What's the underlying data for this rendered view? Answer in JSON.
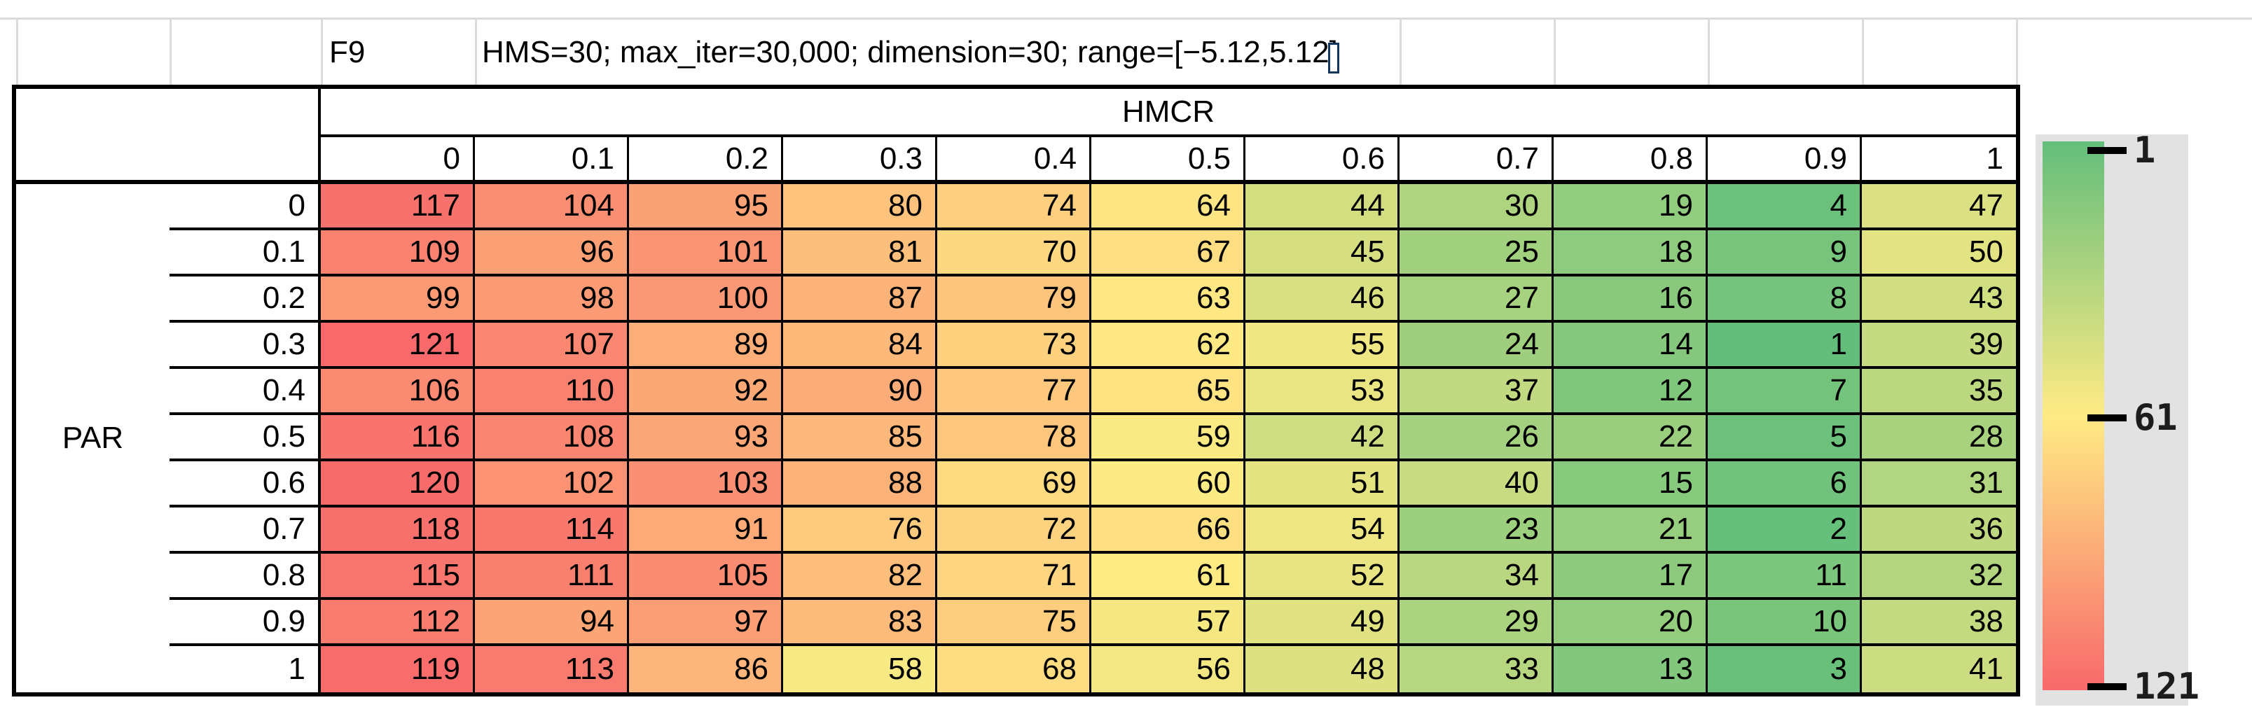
{
  "title": {
    "cell_label": "F9",
    "settings": "HMS=30; max_iter=30,000; dimension=30; range=[−5.12,5.12]"
  },
  "chart_data": {
    "type": "heatmap",
    "title": "F9",
    "subtitle": "HMS=30; max_iter=30,000; dimension=30; range=[−5.12,5.12]",
    "x_axis_label": "HMCR",
    "y_axis_label": "PAR",
    "x_ticks": [
      "0",
      "0.1",
      "0.2",
      "0.3",
      "0.4",
      "0.5",
      "0.6",
      "0.7",
      "0.8",
      "0.9",
      "1"
    ],
    "y_ticks": [
      "0",
      "0.1",
      "0.2",
      "0.3",
      "0.4",
      "0.5",
      "0.6",
      "0.7",
      "0.8",
      "0.9",
      "1"
    ],
    "values": [
      [
        117,
        104,
        95,
        80,
        74,
        64,
        44,
        30,
        19,
        4,
        47
      ],
      [
        109,
        96,
        101,
        81,
        70,
        67,
        45,
        25,
        18,
        9,
        50
      ],
      [
        99,
        98,
        100,
        87,
        79,
        63,
        46,
        27,
        16,
        8,
        43
      ],
      [
        121,
        107,
        89,
        84,
        73,
        62,
        55,
        24,
        14,
        1,
        39
      ],
      [
        106,
        110,
        92,
        90,
        77,
        65,
        53,
        37,
        12,
        7,
        35
      ],
      [
        116,
        108,
        93,
        85,
        78,
        59,
        42,
        26,
        22,
        5,
        28
      ],
      [
        120,
        102,
        103,
        88,
        69,
        60,
        51,
        40,
        15,
        6,
        31
      ],
      [
        118,
        114,
        91,
        76,
        72,
        66,
        54,
        23,
        21,
        2,
        36
      ],
      [
        115,
        111,
        105,
        82,
        71,
        61,
        52,
        34,
        17,
        11,
        32
      ],
      [
        112,
        94,
        97,
        83,
        75,
        57,
        49,
        29,
        20,
        10,
        38
      ],
      [
        119,
        113,
        86,
        58,
        68,
        56,
        48,
        33,
        13,
        3,
        41
      ]
    ],
    "color_scale": {
      "min_value": 1,
      "mid_value": 61,
      "max_value": 121,
      "min_color": "#63BE7B",
      "mid_color": "#FFEB84",
      "max_color": "#F8696B"
    },
    "legend": {
      "position": "right",
      "ticks": [
        "1",
        "61",
        "121"
      ]
    }
  }
}
